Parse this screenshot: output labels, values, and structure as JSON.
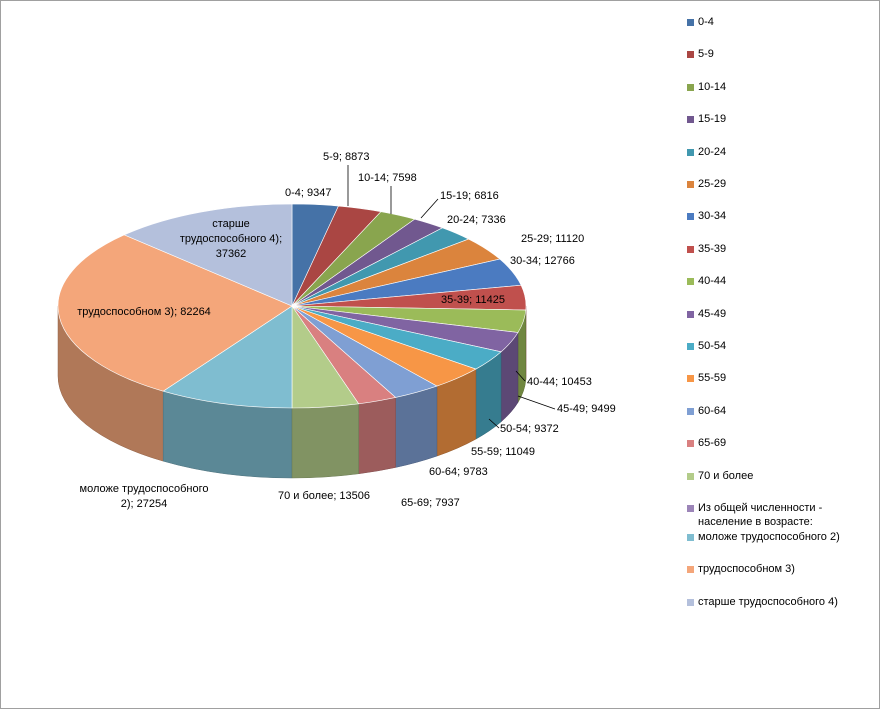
{
  "chart_data": {
    "type": "pie",
    "style": "3d-exploded-no",
    "slices": [
      {
        "label": "0-4",
        "value": 9347,
        "data_label": "0-4; 9347",
        "color": "#4572a7"
      },
      {
        "label": "5-9",
        "value": 8873,
        "data_label": "5-9; 8873",
        "color": "#aa4643"
      },
      {
        "label": "10-14",
        "value": 7598,
        "data_label": "10-14; 7598",
        "color": "#89a54e"
      },
      {
        "label": "15-19",
        "value": 6816,
        "data_label": "15-19; 6816",
        "color": "#71588f"
      },
      {
        "label": "20-24",
        "value": 7336,
        "data_label": "20-24; 7336",
        "color": "#4198af"
      },
      {
        "label": "25-29",
        "value": 11120,
        "data_label": "25-29; 11120",
        "color": "#db843d"
      },
      {
        "label": "30-34",
        "value": 12766,
        "data_label": "30-34; 12766",
        "color": "#4b7bc1"
      },
      {
        "label": "35-39",
        "value": 11425,
        "data_label": "35-39; 11425",
        "color": "#c0504d"
      },
      {
        "label": "40-44",
        "value": 10453,
        "data_label": "40-44; 10453",
        "color": "#9bbb59"
      },
      {
        "label": "45-49",
        "value": 9499,
        "data_label": "45-49; 9499",
        "color": "#8064a2"
      },
      {
        "label": "50-54",
        "value": 9372,
        "data_label": "50-54; 9372",
        "color": "#4bacc6"
      },
      {
        "label": "55-59",
        "value": 11049,
        "data_label": "55-59; 11049",
        "color": "#f79646"
      },
      {
        "label": "60-64",
        "value": 9783,
        "data_label": "60-64; 9783",
        "color": "#7f9fd3"
      },
      {
        "label": "65-69",
        "value": 7937,
        "data_label": "65-69; 7937",
        "color": "#d98080"
      },
      {
        "label": "70 и более",
        "value": 13506,
        "data_label": "70 и более; 13506",
        "color": "#b3cc8a"
      },
      {
        "label": "моложе трудоспособного 2)",
        "value": 27254,
        "data_label": "моложе трудоспособного\n2); 27254",
        "color": "#7fbdd0"
      },
      {
        "label": "трудоспособном 3)",
        "value": 82264,
        "data_label": "трудоспособном 3); 82264",
        "color": "#f4a67a"
      },
      {
        "label": "старше трудоспособного 4)",
        "value": 37362,
        "data_label": "старше\nтрудоспособного 4);\n37362",
        "color": "#b4c0dc"
      }
    ],
    "legend": {
      "placement": "right",
      "entries": [
        {
          "label": "0-4",
          "color": "#4572a7"
        },
        {
          "label": "5-9",
          "color": "#aa4643"
        },
        {
          "label": "10-14",
          "color": "#89a54e"
        },
        {
          "label": "15-19",
          "color": "#71588f"
        },
        {
          "label": "20-24",
          "color": "#4198af"
        },
        {
          "label": "25-29",
          "color": "#db843d"
        },
        {
          "label": "30-34",
          "color": "#4b7bc1"
        },
        {
          "label": "35-39",
          "color": "#c0504d"
        },
        {
          "label": "40-44",
          "color": "#9bbb59"
        },
        {
          "label": "45-49",
          "color": "#8064a2"
        },
        {
          "label": "50-54",
          "color": "#4bacc6"
        },
        {
          "label": "55-59",
          "color": "#f79646"
        },
        {
          "label": "60-64",
          "color": "#7f9fd3"
        },
        {
          "label": "65-69",
          "color": "#d98080"
        },
        {
          "label": "70 и более",
          "color": "#b3cc8a"
        },
        {
          "label": "Из общей численности -\nнаселение в возрасте:",
          "color": "#9c85b8"
        },
        {
          "label": " моложе трудоспособного 2)",
          "color": "#7fbdd0"
        },
        {
          "label": " трудоспособном 3)",
          "color": "#f4a67a"
        },
        {
          "label": " старше трудоспособного  4)",
          "color": "#b4c0dc"
        }
      ]
    }
  }
}
